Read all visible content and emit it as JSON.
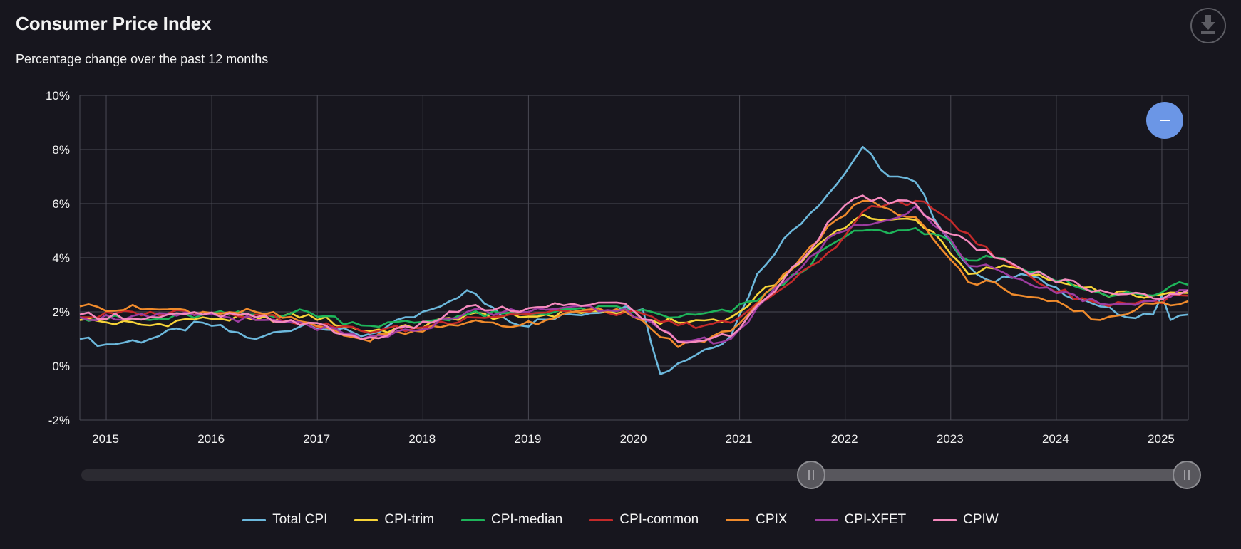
{
  "header": {
    "title": "Consumer Price Index",
    "subtitle": "Percentage change over the past 12 months"
  },
  "toolbar": {
    "download_icon": "download-icon",
    "zoom_icon": "minus-icon"
  },
  "chart_data": {
    "type": "line",
    "title": "Consumer Price Index",
    "subtitle": "Percentage change over the past 12 months",
    "xlabel": "",
    "ylabel": "",
    "x_start": "2014-10",
    "x_end": "2025-04",
    "x_ticks": [
      "2015",
      "2016",
      "2017",
      "2018",
      "2019",
      "2020",
      "2021",
      "2022",
      "2023",
      "2024",
      "2025"
    ],
    "y_ticks": [
      "10%",
      "8%",
      "6%",
      "4%",
      "2%",
      "0%",
      "-2%"
    ],
    "ylim": [
      -2,
      10
    ],
    "grid": true,
    "legend_position": "bottom",
    "range_slider": {
      "start_year": "2021",
      "end_year": "2025"
    },
    "series": [
      {
        "name": "Total CPI",
        "color": "#6cb8dc",
        "points": [
          [
            "2014-10",
            1.0
          ],
          [
            "2015-01",
            0.8
          ],
          [
            "2015-06",
            1.0
          ],
          [
            "2015-12",
            1.6
          ],
          [
            "2016-06",
            1.0
          ],
          [
            "2016-12",
            1.6
          ],
          [
            "2017-06",
            1.1
          ],
          [
            "2017-12",
            1.8
          ],
          [
            "2018-03",
            2.2
          ],
          [
            "2018-06",
            2.8
          ],
          [
            "2018-12",
            1.5
          ],
          [
            "2019-06",
            1.9
          ],
          [
            "2019-12",
            2.2
          ],
          [
            "2020-02",
            2.1
          ],
          [
            "2020-04",
            -0.3
          ],
          [
            "2020-06",
            0.1
          ],
          [
            "2020-12",
            1.1
          ],
          [
            "2021-03",
            3.4
          ],
          [
            "2021-06",
            4.7
          ],
          [
            "2021-12",
            6.7
          ],
          [
            "2022-03",
            8.1
          ],
          [
            "2022-06",
            7.0
          ],
          [
            "2022-09",
            6.8
          ],
          [
            "2022-12",
            5.0
          ],
          [
            "2023-03",
            3.7
          ],
          [
            "2023-06",
            3.1
          ],
          [
            "2023-09",
            3.4
          ],
          [
            "2023-12",
            3.0
          ],
          [
            "2024-06",
            2.2
          ],
          [
            "2024-09",
            1.8
          ],
          [
            "2024-12",
            1.9
          ],
          [
            "2025-01",
            2.6
          ],
          [
            "2025-02",
            1.7
          ],
          [
            "2025-04",
            1.9
          ]
        ]
      },
      {
        "name": "CPI-trim",
        "color": "#f7d438",
        "points": [
          [
            "2014-10",
            1.7
          ],
          [
            "2015-06",
            1.5
          ],
          [
            "2015-12",
            1.8
          ],
          [
            "2016-06",
            1.7
          ],
          [
            "2016-12",
            1.9
          ],
          [
            "2017-06",
            1.3
          ],
          [
            "2017-12",
            1.4
          ],
          [
            "2018-06",
            1.9
          ],
          [
            "2018-12",
            1.8
          ],
          [
            "2019-06",
            2.0
          ],
          [
            "2019-12",
            2.0
          ],
          [
            "2020-03",
            1.7
          ],
          [
            "2020-06",
            1.6
          ],
          [
            "2020-12",
            1.8
          ],
          [
            "2021-06",
            3.3
          ],
          [
            "2021-12",
            5.0
          ],
          [
            "2022-03",
            5.6
          ],
          [
            "2022-06",
            5.4
          ],
          [
            "2022-09",
            5.4
          ],
          [
            "2022-12",
            4.6
          ],
          [
            "2023-03",
            3.4
          ],
          [
            "2023-06",
            3.6
          ],
          [
            "2023-09",
            3.6
          ],
          [
            "2023-12",
            3.2
          ],
          [
            "2024-06",
            2.7
          ],
          [
            "2024-12",
            2.6
          ],
          [
            "2025-04",
            2.7
          ]
        ]
      },
      {
        "name": "CPI-median",
        "color": "#1eb45a",
        "points": [
          [
            "2014-10",
            1.8
          ],
          [
            "2015-06",
            1.7
          ],
          [
            "2015-12",
            1.9
          ],
          [
            "2016-06",
            1.9
          ],
          [
            "2016-12",
            2.0
          ],
          [
            "2017-06",
            1.5
          ],
          [
            "2017-12",
            1.6
          ],
          [
            "2018-06",
            1.9
          ],
          [
            "2018-12",
            1.9
          ],
          [
            "2019-06",
            2.1
          ],
          [
            "2019-12",
            2.1
          ],
          [
            "2020-06",
            1.8
          ],
          [
            "2020-12",
            2.0
          ],
          [
            "2021-06",
            3.0
          ],
          [
            "2021-12",
            4.6
          ],
          [
            "2022-03",
            5.0
          ],
          [
            "2022-06",
            4.9
          ],
          [
            "2022-09",
            5.1
          ],
          [
            "2022-12",
            4.8
          ],
          [
            "2023-03",
            3.9
          ],
          [
            "2023-06",
            4.0
          ],
          [
            "2023-09",
            3.6
          ],
          [
            "2023-12",
            3.3
          ],
          [
            "2024-06",
            2.7
          ],
          [
            "2024-12",
            2.6
          ],
          [
            "2025-03",
            3.1
          ],
          [
            "2025-04",
            3.0
          ]
        ]
      },
      {
        "name": "CPI-common",
        "color": "#c42a2a",
        "points": [
          [
            "2014-10",
            1.8
          ],
          [
            "2015-06",
            2.0
          ],
          [
            "2015-12",
            2.0
          ],
          [
            "2016-06",
            1.9
          ],
          [
            "2016-12",
            1.6
          ],
          [
            "2017-06",
            1.3
          ],
          [
            "2017-12",
            1.4
          ],
          [
            "2018-06",
            1.8
          ],
          [
            "2018-12",
            1.9
          ],
          [
            "2019-06",
            2.0
          ],
          [
            "2019-12",
            2.0
          ],
          [
            "2020-06",
            1.5
          ],
          [
            "2020-12",
            1.6
          ],
          [
            "2021-06",
            2.9
          ],
          [
            "2021-12",
            4.4
          ],
          [
            "2022-03",
            5.7
          ],
          [
            "2022-06",
            6.0
          ],
          [
            "2022-09",
            6.1
          ],
          [
            "2022-12",
            5.6
          ],
          [
            "2023-03",
            4.9
          ],
          [
            "2023-06",
            4.0
          ],
          [
            "2023-09",
            3.6
          ],
          [
            "2023-12",
            2.9
          ],
          [
            "2024-06",
            2.3
          ],
          [
            "2024-12",
            2.4
          ],
          [
            "2025-04",
            2.6
          ]
        ]
      },
      {
        "name": "CPIX",
        "color": "#f08b2c",
        "points": [
          [
            "2014-10",
            2.2
          ],
          [
            "2015-06",
            2.1
          ],
          [
            "2015-12",
            2.0
          ],
          [
            "2016-06",
            2.0
          ],
          [
            "2016-12",
            1.6
          ],
          [
            "2017-06",
            1.0
          ],
          [
            "2017-12",
            1.3
          ],
          [
            "2018-06",
            1.6
          ],
          [
            "2018-12",
            1.5
          ],
          [
            "2019-06",
            2.0
          ],
          [
            "2019-12",
            2.0
          ],
          [
            "2020-06",
            0.7
          ],
          [
            "2020-12",
            1.3
          ],
          [
            "2021-06",
            3.4
          ],
          [
            "2021-12",
            5.4
          ],
          [
            "2022-03",
            6.1
          ],
          [
            "2022-06",
            5.8
          ],
          [
            "2022-09",
            5.5
          ],
          [
            "2022-12",
            4.3
          ],
          [
            "2023-03",
            3.1
          ],
          [
            "2023-06",
            3.1
          ],
          [
            "2023-09",
            2.6
          ],
          [
            "2023-12",
            2.4
          ],
          [
            "2024-06",
            1.7
          ],
          [
            "2024-12",
            2.3
          ],
          [
            "2025-04",
            2.4
          ]
        ]
      },
      {
        "name": "CPI-XFET",
        "color": "#9c3ca0",
        "points": [
          [
            "2014-10",
            1.8
          ],
          [
            "2015-06",
            1.8
          ],
          [
            "2015-12",
            1.9
          ],
          [
            "2016-06",
            1.7
          ],
          [
            "2016-12",
            1.5
          ],
          [
            "2017-06",
            1.0
          ],
          [
            "2017-12",
            1.3
          ],
          [
            "2018-06",
            2.0
          ],
          [
            "2018-12",
            2.0
          ],
          [
            "2019-06",
            2.2
          ],
          [
            "2019-12",
            2.1
          ],
          [
            "2020-06",
            0.9
          ],
          [
            "2020-12",
            1.0
          ],
          [
            "2021-06",
            3.1
          ],
          [
            "2021-12",
            4.9
          ],
          [
            "2022-03",
            5.2
          ],
          [
            "2022-06",
            5.4
          ],
          [
            "2022-09",
            5.9
          ],
          [
            "2022-12",
            5.0
          ],
          [
            "2023-03",
            3.7
          ],
          [
            "2023-06",
            3.6
          ],
          [
            "2023-09",
            3.2
          ],
          [
            "2023-12",
            2.9
          ],
          [
            "2024-06",
            2.3
          ],
          [
            "2024-12",
            2.4
          ],
          [
            "2025-04",
            2.8
          ]
        ]
      },
      {
        "name": "CPIW",
        "color": "#f589be",
        "points": [
          [
            "2014-10",
            1.9
          ],
          [
            "2015-06",
            1.8
          ],
          [
            "2015-12",
            1.9
          ],
          [
            "2016-06",
            1.8
          ],
          [
            "2016-12",
            1.6
          ],
          [
            "2017-06",
            1.0
          ],
          [
            "2017-12",
            1.4
          ],
          [
            "2018-06",
            2.2
          ],
          [
            "2018-12",
            2.0
          ],
          [
            "2019-06",
            2.3
          ],
          [
            "2019-12",
            2.3
          ],
          [
            "2020-06",
            0.9
          ],
          [
            "2020-12",
            1.1
          ],
          [
            "2021-06",
            3.2
          ],
          [
            "2021-12",
            5.6
          ],
          [
            "2022-03",
            6.3
          ],
          [
            "2022-06",
            6.0
          ],
          [
            "2022-09",
            6.0
          ],
          [
            "2022-12",
            5.0
          ],
          [
            "2023-03",
            4.6
          ],
          [
            "2023-06",
            4.0
          ],
          [
            "2023-09",
            3.6
          ],
          [
            "2023-12",
            3.3
          ],
          [
            "2024-06",
            2.8
          ],
          [
            "2024-12",
            2.5
          ],
          [
            "2025-04",
            2.8
          ]
        ]
      }
    ]
  }
}
